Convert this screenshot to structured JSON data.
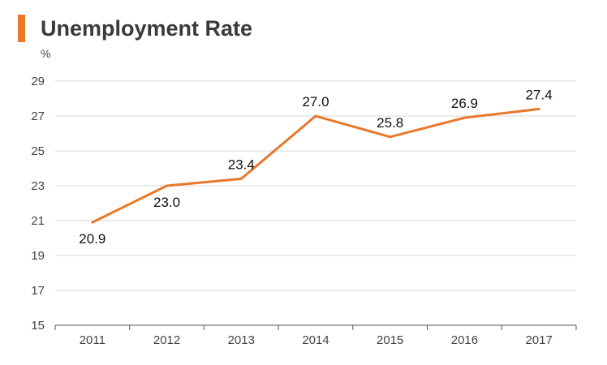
{
  "chart_data": {
    "type": "line",
    "title": "Unemployment Rate",
    "ylabel": "%",
    "xlabel": "",
    "categories": [
      "2011",
      "2012",
      "2013",
      "2014",
      "2015",
      "2016",
      "2017"
    ],
    "series": [
      {
        "values": [
          20.9,
          23.0,
          23.4,
          27.0,
          25.8,
          26.9,
          27.4
        ],
        "labels": [
          "20.9",
          "23.0",
          "23.4",
          "27.0",
          "25.8",
          "26.9",
          "27.4"
        ]
      }
    ],
    "ylim": [
      15,
      29
    ],
    "yticks": [
      15,
      17,
      19,
      21,
      23,
      25,
      27,
      29
    ],
    "grid": true,
    "legend": "none",
    "colors": {
      "line": "#e8792b",
      "accent": "#e8792b",
      "grid": "#d9d9d9",
      "axis": "#555555"
    }
  }
}
